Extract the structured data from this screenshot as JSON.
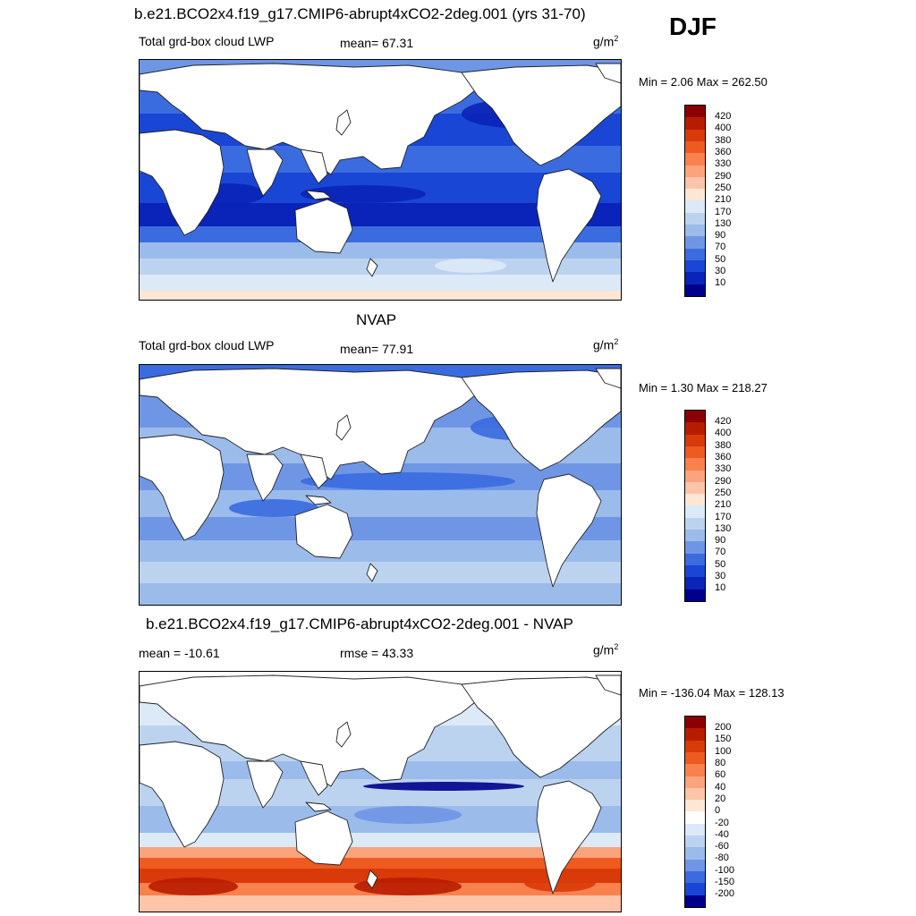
{
  "season": "DJF",
  "panels": [
    {
      "title": "b.e21.BCO2x4.f19_g17.CMIP6-abrupt4xCO2-2deg.001 (yrs 31-70)",
      "left_label": "Total grd-box cloud LWP",
      "center_label": "mean=  67.31",
      "units": "g/m",
      "units_sup": "2",
      "minmax": "Min =   2.06 Max = 262.50",
      "levels": [
        "420",
        "400",
        "380",
        "360",
        "330",
        "290",
        "250",
        "210",
        "170",
        "130",
        "90",
        "70",
        "50",
        "30",
        "10"
      ],
      "colors": [
        "#8b0000",
        "#b81c00",
        "#d93a0a",
        "#ee5a20",
        "#f8814e",
        "#fba37c",
        "#fcc4a8",
        "#fde6d4",
        "#dce9f7",
        "#bcd3f0",
        "#9bbbeb",
        "#6f96e5",
        "#3a6ce0",
        "#1a46d6",
        "#0a23b8",
        "#00008b"
      ]
    },
    {
      "title": "NVAP",
      "left_label": "Total grd-box cloud LWP",
      "center_label": "mean=  77.91",
      "units": "g/m",
      "units_sup": "2",
      "minmax": "Min =   1.30 Max = 218.27",
      "levels": [
        "420",
        "400",
        "380",
        "360",
        "330",
        "290",
        "250",
        "210",
        "170",
        "130",
        "90",
        "70",
        "50",
        "30",
        "10"
      ],
      "colors": [
        "#8b0000",
        "#b81c00",
        "#d93a0a",
        "#ee5a20",
        "#f8814e",
        "#fba37c",
        "#fcc4a8",
        "#fde6d4",
        "#dce9f7",
        "#bcd3f0",
        "#9bbbeb",
        "#6f96e5",
        "#3a6ce0",
        "#1a46d6",
        "#0a23b8",
        "#00008b"
      ]
    },
    {
      "title": "b.e21.BCO2x4.f19_g17.CMIP6-abrupt4xCO2-2deg.001 - NVAP",
      "left_label": "mean = -10.61",
      "center_label": "rmse =  43.33",
      "units": "g/m",
      "units_sup": "2",
      "minmax": "Min = -136.04 Max = 128.13",
      "levels": [
        "200",
        "150",
        "100",
        "80",
        "60",
        "40",
        "20",
        "0",
        "-20",
        "-40",
        "-60",
        "-80",
        "-100",
        "-150",
        "-200"
      ],
      "colors": [
        "#8b0000",
        "#b81c00",
        "#d93a0a",
        "#ee5a20",
        "#f8814e",
        "#fba37c",
        "#fcc4a8",
        "#fde6d4",
        "#ffffff",
        "#dce9f7",
        "#bcd3f0",
        "#9bbbeb",
        "#6f96e5",
        "#3a6ce0",
        "#1a46d6",
        "#00008b"
      ]
    }
  ]
}
